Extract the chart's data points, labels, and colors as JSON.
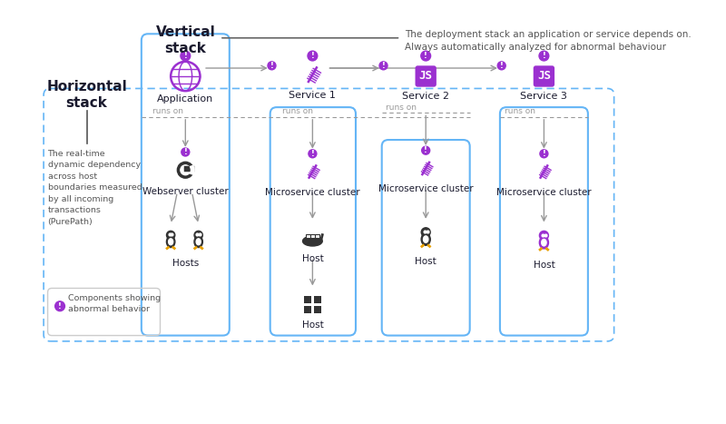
{
  "bg_color": "#ffffff",
  "purple": "#9b30d0",
  "blue_border": "#64b5f6",
  "gray_text": "#999999",
  "dark_text": "#1a1a2e",
  "arrow_color": "#aaaaaa",
  "vertical_stack_label": "Vertical\nstack",
  "vertical_stack_note": "The deployment stack an application or service depends on.\nAlways automatically analyzed for abnormal behaviour",
  "horizontal_stack_label": "Horizontal\nstack",
  "horizontal_stack_note": "The real-time\ndynamic dependency\nacross host\nboundaries measured\nby all incoming\ntransactions\n(PurePath)",
  "legend_note": "Components showing\nabnormal behavior",
  "col1_label": "Application",
  "col1_sub_label": "Webserver cluster",
  "col1_sub2_label": "Hosts",
  "col2_label": "Service 1",
  "col2_sub_label": "Microservice cluster",
  "col2_sub2_label": "Host",
  "col2_sub3_label": "Host",
  "col3_label": "Service 2",
  "col3_sub_label": "Microservice cluster",
  "col3_sub2_label": "Host",
  "col4_label": "Service 3",
  "col4_sub_label": "Microservice cluster",
  "col4_sub2_label": "Host",
  "runs_on": "runs on"
}
